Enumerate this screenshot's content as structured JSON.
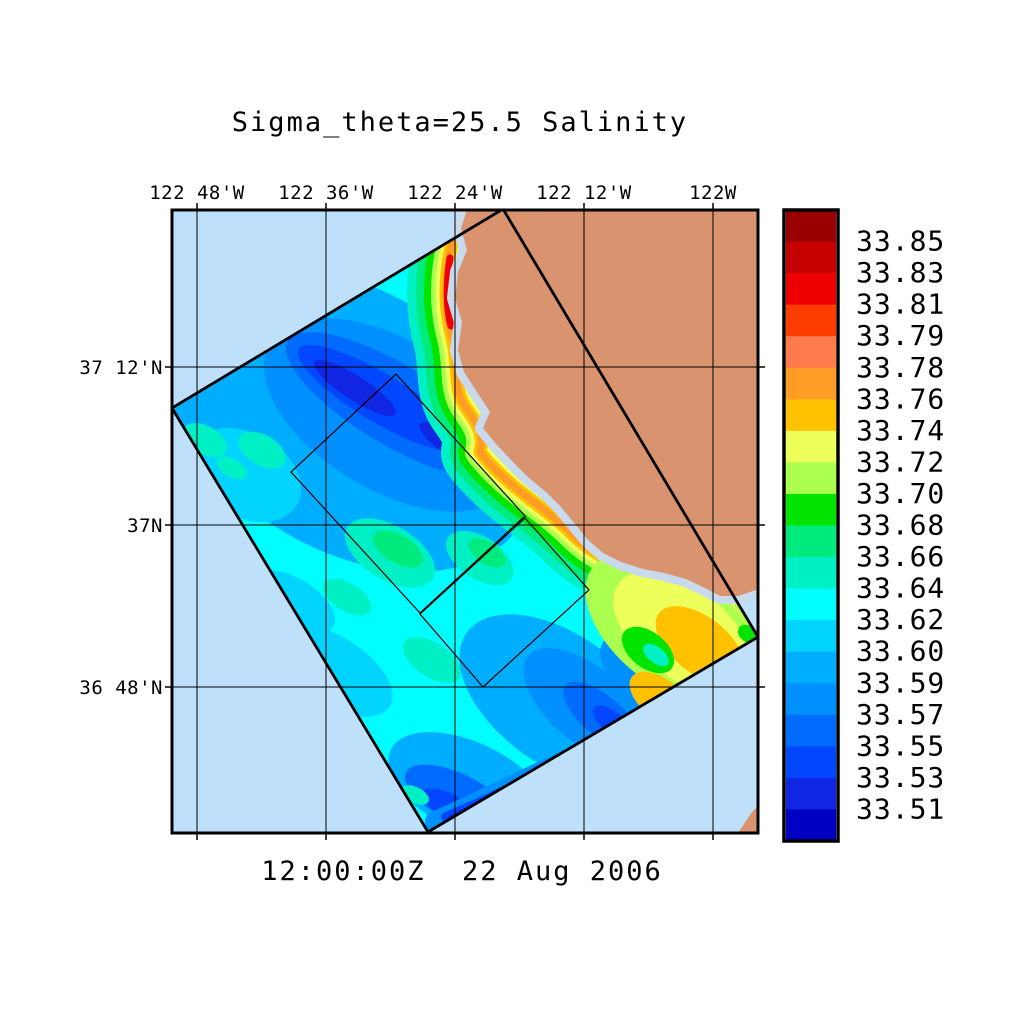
{
  "figure": {
    "title": "Sigma_theta=25.5 Salinity",
    "time_label": "12:00:00Z  22 Aug 2006"
  },
  "axes": {
    "x_tick_labels": [
      "122 48'W",
      "122 36'W",
      "122 24'W",
      "122 12'W",
      "122W"
    ],
    "y_tick_labels": [
      "37 12'N",
      "37N",
      "36 48'N"
    ]
  },
  "colorbar": {
    "tick_labels": [
      "33.85",
      "33.83",
      "33.81",
      "33.79",
      "33.78",
      "33.76",
      "33.74",
      "33.72",
      "33.70",
      "33.68",
      "33.66",
      "33.64",
      "33.62",
      "33.60",
      "33.59",
      "33.57",
      "33.55",
      "33.53",
      "33.51"
    ],
    "band_colors_top_to_bottom": [
      "#9B0000",
      "#C60000",
      "#EE0000",
      "#FF3C00",
      "#FF7B4D",
      "#FF9C26",
      "#FFC100",
      "#EDFF5A",
      "#ABFF4F",
      "#00E400",
      "#00EB7E",
      "#00F0C6",
      "#00FDFF",
      "#00D4FF",
      "#00AEFF",
      "#0090FF",
      "#006CFF",
      "#0047FF",
      "#1126E2",
      "#0000C2"
    ]
  },
  "map": {
    "ocean_color": "#BEE0FB",
    "land_color": "#D9946F",
    "coastal_shallow_color": "#C9DAEC",
    "outline_color": "#000000"
  },
  "chart_data": {
    "type": "heatmap",
    "title": "Sigma_theta=25.5 Salinity",
    "subtitle": "12:00:00Z  22 Aug 2006",
    "variable": "Salinity",
    "surface": "Sigma_theta=25.5",
    "x_ticks": [
      "122 48'W",
      "122 36'W",
      "122 24'W",
      "122 12'W",
      "122W"
    ],
    "y_ticks": [
      "37 12'N",
      "37N",
      "36 48'N"
    ],
    "colorbar_ticks": [
      33.85,
      33.83,
      33.81,
      33.79,
      33.78,
      33.76,
      33.74,
      33.72,
      33.7,
      33.68,
      33.66,
      33.64,
      33.62,
      33.6,
      33.59,
      33.57,
      33.55,
      33.53,
      33.51
    ],
    "colorbar_range": [
      33.51,
      33.85
    ],
    "n_color_bands": 20,
    "legend_position": "right",
    "grid": true,
    "notes": "Filled-contour salinity field on the sigma_theta=25.5 surface over a rotated model domain off the central California coast; two nested rotated sub-domain outlines; tan land mask with pale shallow coastal strip; lowest salinity (deep blue) offshore streaks, highest (orange/red) hugging the coastline."
  }
}
